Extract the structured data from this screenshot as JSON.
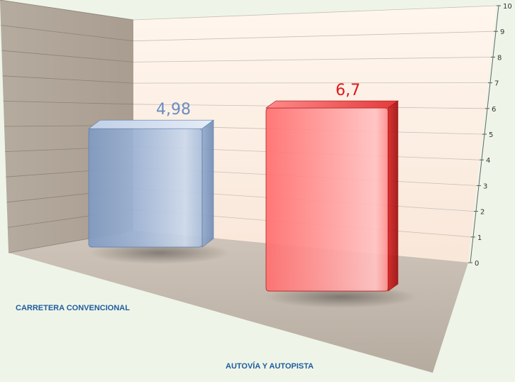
{
  "chart_data": {
    "type": "bar",
    "categories": [
      "CARRETERA CONVENCIONAL",
      "AUTOVÍA Y AUTOPISTA"
    ],
    "values": [
      4.98,
      6.7
    ],
    "data_labels": [
      "4,98",
      "6,7"
    ],
    "ylim": [
      0,
      10
    ],
    "yticks": [
      0,
      1,
      2,
      3,
      4,
      5,
      6,
      7,
      8,
      9,
      10
    ],
    "grid": true,
    "legend": "none",
    "title": "",
    "xlabel": "",
    "ylabel": "",
    "colors": {
      "bar1": "#8aa6cc",
      "bar2": "#ff8a8a",
      "bar1_label": "#6a8cc0",
      "bar2_label": "#e01818",
      "category_label": "#1f5b9e"
    }
  }
}
